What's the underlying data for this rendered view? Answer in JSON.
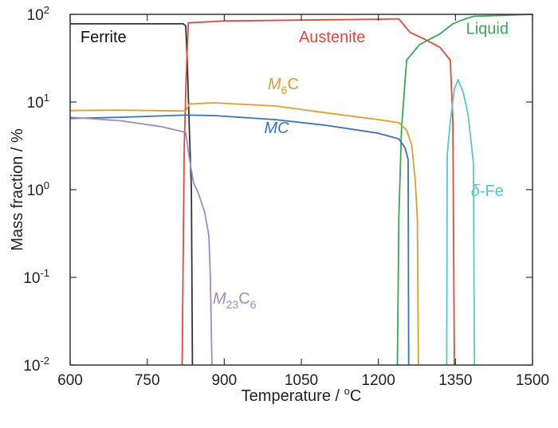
{
  "chart_data": {
    "type": "line",
    "title": "",
    "xlabel": "Temperature / °C",
    "ylabel": "Mass fraction / %",
    "xlim": [
      600,
      1500
    ],
    "ylim": [
      0.01,
      100
    ],
    "yscale": "log",
    "grid": false,
    "x_ticks": [
      600,
      750,
      900,
      1050,
      1200,
      1350,
      1500
    ],
    "y_ticks": [
      0.01,
      0.1,
      1,
      10,
      100
    ],
    "x_tick_labels": [
      "600",
      "750",
      "900",
      "1050",
      "1200",
      "1350",
      "1500"
    ],
    "y_tick_labels": [
      {
        "base": "10",
        "exp": "-2"
      },
      {
        "base": "10",
        "exp": "-1"
      },
      {
        "base": "10",
        "exp": "0"
      },
      {
        "base": "10",
        "exp": "1"
      },
      {
        "base": "10",
        "exp": "2"
      }
    ],
    "series": [
      {
        "name": "Ferrite",
        "label": {
          "text": "Ferrite",
          "italic": "",
          "sub": "",
          "tail": ""
        },
        "color": "#333333",
        "points": [
          [
            600,
            78
          ],
          [
            820,
            78
          ],
          [
            825,
            74
          ],
          [
            828,
            30
          ],
          [
            832,
            5
          ],
          [
            836,
            1
          ],
          [
            838,
            0.01
          ]
        ]
      },
      {
        "name": "Austenite",
        "label": {
          "text": "Austenite",
          "italic": "",
          "sub": "",
          "tail": ""
        },
        "color": "#e0493f",
        "points": [
          [
            818,
            0.01
          ],
          [
            822,
            3
          ],
          [
            826,
            20
          ],
          [
            830,
            80
          ],
          [
            900,
            84
          ],
          [
            1050,
            86
          ],
          [
            1200,
            88
          ],
          [
            1240,
            89
          ],
          [
            1250,
            75
          ],
          [
            1262,
            62
          ],
          [
            1290,
            52
          ],
          [
            1320,
            42
          ],
          [
            1340,
            30
          ],
          [
            1345,
            6
          ],
          [
            1348,
            0.01
          ]
        ]
      },
      {
        "name": "Liquid",
        "label": {
          "text": "Liquid",
          "italic": "",
          "sub": "",
          "tail": ""
        },
        "color": "#3aa55a",
        "points": [
          [
            1237,
            0.01
          ],
          [
            1240,
            0.5
          ],
          [
            1245,
            5
          ],
          [
            1255,
            30
          ],
          [
            1280,
            45
          ],
          [
            1320,
            60
          ],
          [
            1345,
            78
          ],
          [
            1360,
            85
          ],
          [
            1385,
            95
          ],
          [
            1500,
            100
          ]
        ]
      },
      {
        "name": "M6C",
        "label": {
          "text": "",
          "italic": "M",
          "sub": "6",
          "tail": "C"
        },
        "color": "#d9a030",
        "points": [
          [
            600,
            8.0
          ],
          [
            700,
            8.1
          ],
          [
            825,
            7.9
          ],
          [
            832,
            9.5
          ],
          [
            880,
            9.8
          ],
          [
            1000,
            9.0
          ],
          [
            1100,
            7.5
          ],
          [
            1200,
            6.3
          ],
          [
            1240,
            5.8
          ],
          [
            1255,
            4.8
          ],
          [
            1265,
            3.2
          ],
          [
            1272,
            1.2
          ],
          [
            1276,
            0.45
          ],
          [
            1278,
            0.01
          ]
        ]
      },
      {
        "name": "MC",
        "label": {
          "text": "",
          "italic": "MC",
          "sub": "",
          "tail": ""
        },
        "color": "#3a72b8",
        "points": [
          [
            600,
            6.5
          ],
          [
            700,
            6.7
          ],
          [
            825,
            7.1
          ],
          [
            880,
            7.0
          ],
          [
            1000,
            6.3
          ],
          [
            1100,
            5.4
          ],
          [
            1200,
            4.4
          ],
          [
            1240,
            3.8
          ],
          [
            1252,
            3.0
          ],
          [
            1258,
            2.2
          ],
          [
            1259,
            0.01
          ]
        ]
      },
      {
        "name": "M23C6",
        "label": {
          "text": "",
          "italic": "M",
          "sub": "23",
          "tail": "C6"
        },
        "color": "#9b8cc6",
        "points": [
          [
            600,
            6.7
          ],
          [
            700,
            6.1
          ],
          [
            780,
            5.2
          ],
          [
            825,
            4.5
          ],
          [
            832,
            2.3
          ],
          [
            840,
            1.2
          ],
          [
            850,
            0.9
          ],
          [
            862,
            0.55
          ],
          [
            870,
            0.3
          ],
          [
            873,
            0.1
          ],
          [
            876,
            0.01
          ]
        ]
      },
      {
        "name": "δ-Fe",
        "label": {
          "text": "-Fe",
          "italic": "δ",
          "sub": "",
          "tail": ""
        },
        "color": "#5bc6cc",
        "points": [
          [
            1333,
            0.01
          ],
          [
            1334,
            2.5
          ],
          [
            1340,
            6
          ],
          [
            1348,
            14
          ],
          [
            1355,
            18
          ],
          [
            1365,
            13
          ],
          [
            1375,
            7
          ],
          [
            1385,
            2
          ],
          [
            1387,
            0.01
          ]
        ]
      }
    ]
  }
}
